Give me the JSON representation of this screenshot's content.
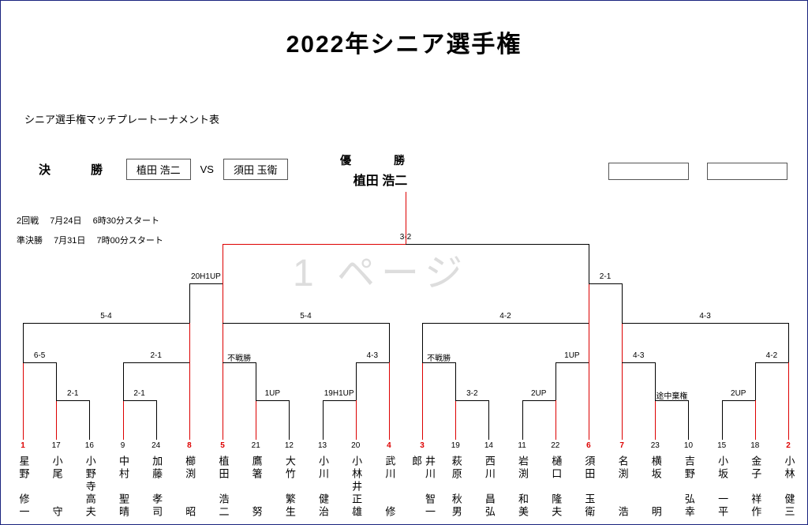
{
  "title": "2022年シニア選手権",
  "subtitle": "シニア選手権マッチプレートーナメント表",
  "final": {
    "label": "決　勝",
    "p1": "植田 浩二",
    "vs": "VS",
    "p2": "須田 玉衛"
  },
  "champion": {
    "label": "優　勝",
    "name": "植田 浩二"
  },
  "schedule": [
    {
      "round": "2回戦",
      "date": "7月24日",
      "time": "6時30分スタート"
    },
    {
      "round": "準決勝",
      "date": "7月31日",
      "time": "7時00分スタート"
    }
  ],
  "watermark": "1 ページ",
  "colors": {
    "win": "#d00",
    "lose": "#000",
    "border": "#1a237e"
  },
  "layout": {
    "outerW": 990,
    "colGapApprox": 41,
    "firstX": 12,
    "sfY": 60,
    "qfY": 110,
    "r3Y": 160,
    "r2Y": 210,
    "r1Y": 258,
    "leafTop": 308
  },
  "scores": {
    "final": "3-2",
    "sf": [
      "20H1UP",
      "2-1"
    ],
    "qf": [
      "5-4",
      "5-4",
      "4-2",
      "4-3"
    ],
    "r3": [
      "6-5",
      "2-1",
      "不戦勝",
      "4-3",
      "不戦勝",
      "1UP",
      "4-3",
      "4-2"
    ],
    "r2": [
      "2-1",
      "2-1",
      "1UP",
      "19H1UP",
      "3-2",
      "2UP",
      "途中棄権",
      "2UP"
    ]
  },
  "players": [
    {
      "seed": "1",
      "seedColor": "r",
      "name": "星野　修一"
    },
    {
      "seed": "17",
      "seedColor": "k",
      "name": "小尾　　守"
    },
    {
      "seed": "16",
      "seedColor": "k",
      "name": "小野寺高夫"
    },
    {
      "seed": "9",
      "seedColor": "k",
      "name": "中村　聖晴"
    },
    {
      "seed": "24",
      "seedColor": "k",
      "name": "加藤　孝司"
    },
    {
      "seed": "8",
      "seedColor": "r",
      "name": "櫛渕　　昭"
    },
    {
      "seed": "5",
      "seedColor": "r",
      "name": "植田　浩二"
    },
    {
      "seed": "21",
      "seedColor": "k",
      "name": "鷹箸　　努"
    },
    {
      "seed": "12",
      "seedColor": "k",
      "name": "大竹　繁生"
    },
    {
      "seed": "13",
      "seedColor": "k",
      "name": "小川　健治"
    },
    {
      "seed": "20",
      "seedColor": "k",
      "name": "小林井正雄"
    },
    {
      "seed": "4",
      "seedColor": "r",
      "name": "武川　　修"
    },
    {
      "seed": "3",
      "seedColor": "r",
      "name": "井川　智一郎"
    },
    {
      "seed": "19",
      "seedColor": "k",
      "name": "萩原　秋男"
    },
    {
      "seed": "14",
      "seedColor": "k",
      "name": "西川　昌弘"
    },
    {
      "seed": "11",
      "seedColor": "k",
      "name": "岩渕　和美"
    },
    {
      "seed": "22",
      "seedColor": "k",
      "name": "樋口　隆夫"
    },
    {
      "seed": "6",
      "seedColor": "r",
      "name": "須田　玉衛"
    },
    {
      "seed": "7",
      "seedColor": "r",
      "name": "名渕　　浩"
    },
    {
      "seed": "23",
      "seedColor": "k",
      "name": "横坂　　明"
    },
    {
      "seed": "10",
      "seedColor": "k",
      "name": "吉野　弘幸"
    },
    {
      "seed": "15",
      "seedColor": "k",
      "name": "小坂　一平"
    },
    {
      "seed": "18",
      "seedColor": "k",
      "name": "金子　祥作"
    },
    {
      "seed": "2",
      "seedColor": "r",
      "name": "小林　健三"
    }
  ],
  "r1": {
    "pairs": [
      [
        1,
        2
      ],
      [
        3,
        4
      ],
      [
        7,
        8
      ],
      [
        9,
        10
      ],
      [
        13,
        14
      ],
      [
        15,
        16
      ],
      [
        19,
        20
      ],
      [
        21,
        22
      ]
    ],
    "winUp": [
      1,
      2,
      7,
      10,
      13,
      16,
      19,
      22
    ]
  },
  "r2": {
    "pairs": [
      [
        0,
        1
      ],
      [
        3,
        5
      ],
      [
        6,
        8
      ],
      [
        10,
        11
      ],
      [
        12,
        13
      ],
      [
        15,
        17
      ],
      [
        18,
        20
      ],
      [
        21,
        23
      ]
    ],
    "winUp": [
      0,
      5,
      6,
      11,
      12,
      17,
      18,
      23
    ],
    "midFrom": [
      1,
      3,
      7,
      10,
      13,
      16,
      19,
      22
    ]
  },
  "r3": {
    "nodes": [
      0,
      4,
      7,
      10,
      13,
      16,
      19,
      22
    ],
    "winUp": [
      0,
      7,
      13,
      19
    ],
    "mid": [
      [
        0,
        5
      ],
      [
        6,
        11
      ],
      [
        12,
        17
      ],
      [
        18,
        23
      ]
    ]
  },
  "qf": {
    "nodes": [
      3,
      9,
      15,
      21
    ],
    "winUp": [
      9,
      15
    ],
    "mid": [
      [
        0,
        7
      ],
      [
        13,
        19
      ]
    ]
  },
  "sf": {
    "mid": [
      3,
      21
    ],
    "win": 9
  }
}
